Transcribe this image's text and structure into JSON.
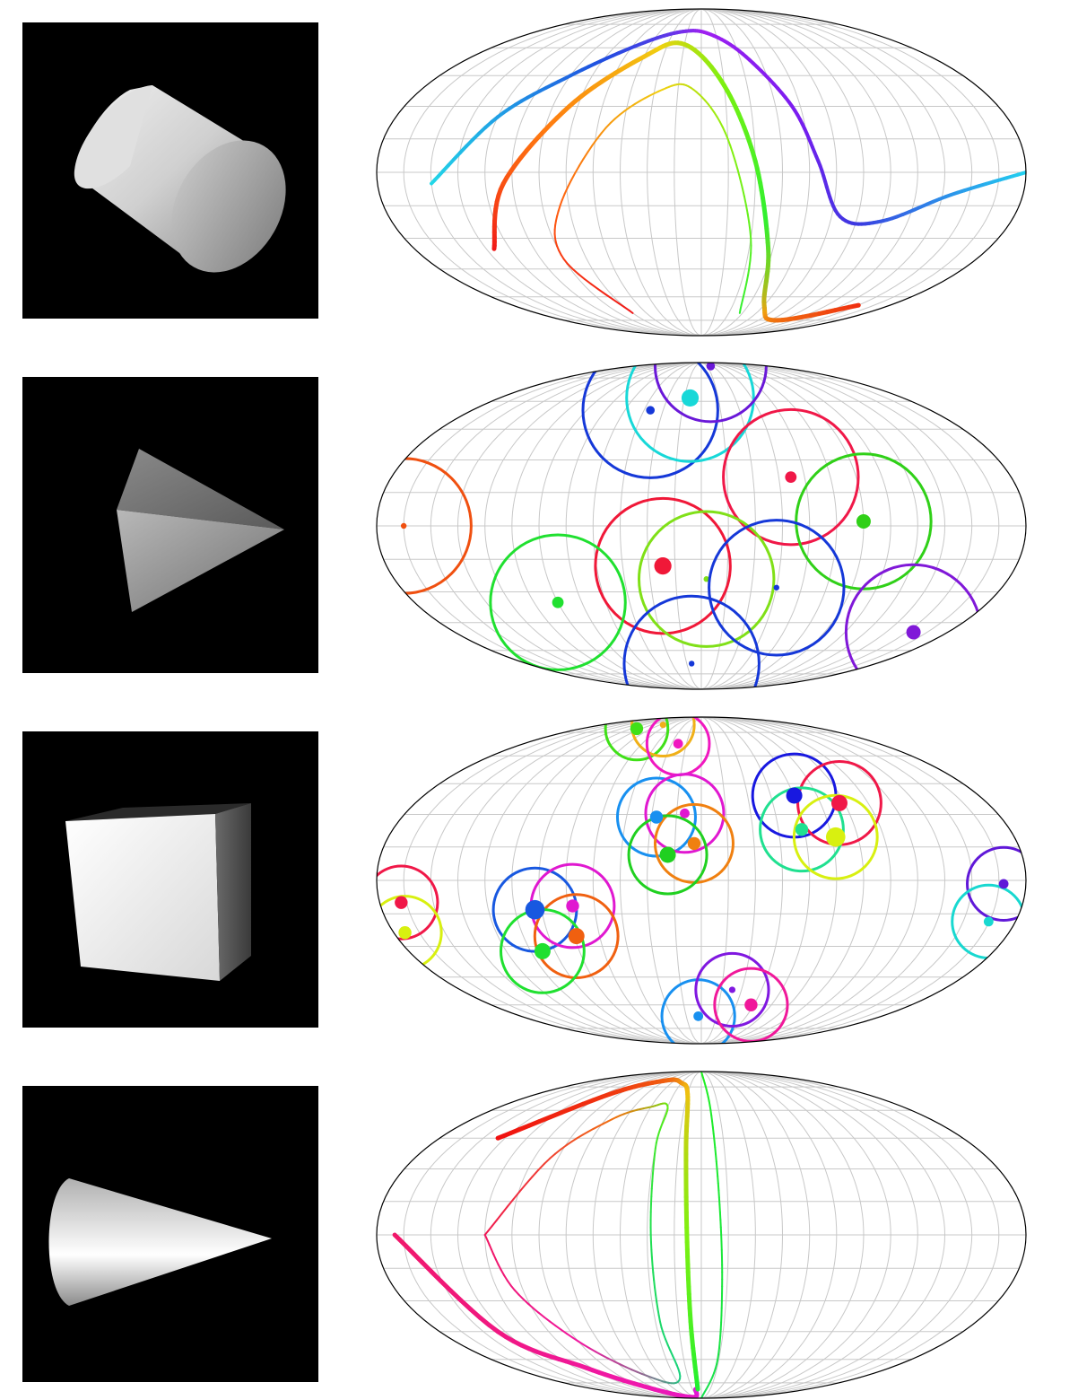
{
  "rows": [
    {
      "shape": "cylinder",
      "map_content": "curves",
      "curves": [
        {
          "points": [
            [
              -150,
              -5
            ],
            [
              -120,
              25
            ],
            [
              -90,
              45
            ],
            [
              -55,
              62
            ],
            [
              -20,
              70
            ],
            [
              10,
              68
            ],
            [
              35,
              55
            ],
            [
              55,
              30
            ],
            [
              65,
              5
            ],
            [
              80,
              -20
            ],
            [
              105,
              -22
            ],
            [
              140,
              -10
            ],
            [
              180,
              0
            ]
          ],
          "colors": [
            "#22d8e8",
            "#1f4fe0",
            "#a020f0",
            "#7a1cf0",
            "#3a3ae0",
            "#22d0f0"
          ],
          "width": 4
        },
        {
          "points": [
            [
              -130,
              -35
            ],
            [
              -110,
              -5
            ],
            [
              -80,
              30
            ],
            [
              -45,
              55
            ],
            [
              -15,
              62
            ],
            [
              15,
              40
            ],
            [
              30,
              5
            ],
            [
              42,
              -35
            ],
            [
              60,
              -65
            ],
            [
              100,
              -75
            ],
            [
              150,
              -65
            ]
          ],
          "colors": [
            "#f01818",
            "#ff7a10",
            "#f0d010",
            "#7cf010",
            "#30f030",
            "#f0a010",
            "#f03010"
          ],
          "width": 5
        },
        {
          "points": [
            [
              -75,
              -70
            ],
            [
              -90,
              -40
            ],
            [
              -80,
              -15
            ],
            [
              -55,
              20
            ],
            [
              -25,
              38
            ],
            [
              -5,
              38
            ],
            [
              15,
              15
            ],
            [
              30,
              -30
            ],
            [
              42,
              -70
            ]
          ],
          "colors": [
            "#f01818",
            "#ff6010",
            "#f0d010",
            "#8cf010",
            "#30f030"
          ],
          "width": 2
        }
      ]
    },
    {
      "shape": "tetrahedron",
      "map_content": "circles",
      "circles": [
        {
          "lon": -40,
          "lat": 55,
          "r": 17,
          "dot": 3,
          "color": "#1538d8"
        },
        {
          "lon": -10,
          "lat": 62,
          "r": 16,
          "dot": 6,
          "color": "#18d8d8"
        },
        {
          "lon": 25,
          "lat": 85,
          "r": 14,
          "dot": 3,
          "color": "#6a18d8"
        },
        {
          "lon": 52,
          "lat": 22,
          "r": 17,
          "dot": 4,
          "color": "#f01848"
        },
        {
          "lon": 90,
          "lat": 2,
          "r": 17,
          "dot": 5,
          "color": "#30d018"
        },
        {
          "lon": -165,
          "lat": 0,
          "r": 17,
          "dot": 2,
          "color": "#f05010"
        },
        {
          "lon": -22,
          "lat": -18,
          "r": 17,
          "dot": 6,
          "color": "#f01838"
        },
        {
          "lon": 3,
          "lat": -24,
          "r": 17,
          "dot": 2,
          "color": "#80e018"
        },
        {
          "lon": 45,
          "lat": -28,
          "r": 17,
          "dot": 2,
          "color": "#1538d8"
        },
        {
          "lon": -90,
          "lat": -35,
          "r": 17,
          "dot": 4,
          "color": "#20e030"
        },
        {
          "lon": -10,
          "lat": -68,
          "r": 17,
          "dot": 2,
          "color": "#1538d8"
        },
        {
          "lon": 155,
          "lat": -50,
          "r": 17,
          "dot": 5,
          "color": "#8018d8"
        }
      ]
    },
    {
      "shape": "cube",
      "map_content": "clusters",
      "clusters": [
        {
          "lon": -60,
          "lat": 75,
          "r": 12,
          "dots": [
            {
              "dx": -10,
              "dy": 2,
              "color": "#40e018",
              "size": 4
            },
            {
              "dx": 4,
              "dy": 4,
              "color": "#f0b018",
              "size": 2
            },
            {
              "dx": 12,
              "dy": -6,
              "color": "#f018c0",
              "size": 3
            }
          ]
        },
        {
          "lon": -15,
          "lat": 20,
          "r": 15,
          "dots": [
            {
              "dx": -10,
              "dy": 10,
              "color": "#1890f0",
              "size": 4
            },
            {
              "dx": 5,
              "dy": 12,
              "color": "#e018d0",
              "size": 3
            },
            {
              "dx": 10,
              "dy": -4,
              "color": "#f08010",
              "size": 4
            },
            {
              "dx": -4,
              "dy": -10,
              "color": "#20d020",
              "size": 5
            }
          ]
        },
        {
          "lon": 70,
          "lat": 30,
          "r": 16,
          "dots": [
            {
              "dx": -12,
              "dy": 10,
              "color": "#1818e0",
              "size": 5
            },
            {
              "dx": 12,
              "dy": 6,
              "color": "#f01848",
              "size": 5
            },
            {
              "dx": -8,
              "dy": -8,
              "color": "#20e090",
              "size": 4
            },
            {
              "dx": 10,
              "dy": -12,
              "color": "#d8f010",
              "size": 6
            }
          ]
        },
        {
          "lon": -85,
          "lat": -20,
          "r": 16,
          "dots": [
            {
              "dx": -10,
              "dy": 8,
              "color": "#1858e0",
              "size": 6
            },
            {
              "dx": 10,
              "dy": 10,
              "color": "#e018d0",
              "size": 4
            },
            {
              "dx": 12,
              "dy": -6,
              "color": "#f06010",
              "size": 5
            },
            {
              "dx": -6,
              "dy": -14,
              "color": "#20e030",
              "size": 5
            }
          ]
        },
        {
          "lon": 20,
          "lat": -60,
          "r": 14,
          "dots": [
            {
              "dx": -14,
              "dy": -6,
              "color": "#1890f0",
              "size": 3
            },
            {
              "dx": 4,
              "dy": 8,
              "color": "#8018e0",
              "size": 2
            },
            {
              "dx": 14,
              "dy": 0,
              "color": "#f0189a",
              "size": 4
            }
          ]
        },
        {
          "lon": -170,
          "lat": -15,
          "r": 14,
          "dots": [
            {
              "dx": 0,
              "dy": 6,
              "color": "#f01848",
              "size": 4
            },
            {
              "dx": 2,
              "dy": -10,
              "color": "#d8f010",
              "size": 4
            }
          ]
        },
        {
          "lon": 165,
          "lat": -10,
          "r": 14,
          "dots": [
            {
              "dx": 4,
              "dy": 10,
              "color": "#6018d8",
              "size": 3
            },
            {
              "dx": -4,
              "dy": -10,
              "color": "#18d8d0",
              "size": 3
            }
          ]
        }
      ]
    },
    {
      "shape": "cone",
      "map_content": "curves",
      "curves": [
        {
          "points": [
            [
              -170,
              0
            ],
            [
              -140,
              -45
            ],
            [
              -110,
              -65
            ],
            [
              -80,
              -80
            ],
            [
              -40,
              -88
            ],
            [
              -10,
              -80
            ]
          ],
          "colors": [
            "#f0186a",
            "#f018a8",
            "#e018d8"
          ],
          "width": 5
        },
        {
          "points": [
            [
              -140,
              45
            ],
            [
              -100,
              70
            ],
            [
              -60,
              80
            ],
            [
              -30,
              78
            ],
            [
              -15,
              70
            ],
            [
              -10,
              40
            ],
            [
              -8,
              0
            ],
            [
              -7,
              -40
            ],
            [
              -6,
              -80
            ]
          ],
          "colors": [
            "#f01010",
            "#f06010",
            "#f0c010",
            "#80f010",
            "#20f030"
          ],
          "width": 5
        },
        {
          "points": [
            [
              -120,
              0
            ],
            [
              -95,
              35
            ],
            [
              -70,
              55
            ],
            [
              -45,
              62
            ],
            [
              -30,
              62
            ],
            [
              -30,
              40
            ],
            [
              -28,
              0
            ],
            [
              -27,
              -40
            ],
            [
              -25,
              -72
            ],
            [
              -60,
              -70
            ],
            [
              -90,
              -50
            ],
            [
              -110,
              -25
            ],
            [
              -120,
              0
            ]
          ],
          "colors": [
            "#f01850",
            "#f07010",
            "#60f010",
            "#20e050",
            "#18d080",
            "#f018a0",
            "#f01860"
          ],
          "width": 2
        },
        {
          "points": [
            [
              5,
              90
            ],
            [
              8,
              60
            ],
            [
              10,
              20
            ],
            [
              12,
              -20
            ],
            [
              14,
              -60
            ],
            [
              15,
              -90
            ]
          ],
          "colors": [
            "#20f020",
            "#18e050"
          ],
          "width": 2
        }
      ]
    }
  ]
}
